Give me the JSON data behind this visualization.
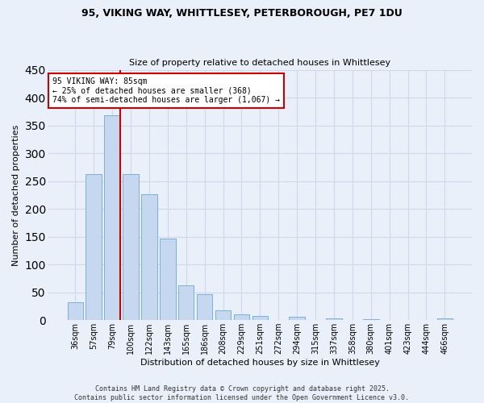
{
  "title_line1": "95, VIKING WAY, WHITTLESEY, PETERBOROUGH, PE7 1DU",
  "title_line2": "Size of property relative to detached houses in Whittlesey",
  "xlabel": "Distribution of detached houses by size in Whittlesey",
  "ylabel": "Number of detached properties",
  "categories": [
    "36sqm",
    "57sqm",
    "79sqm",
    "100sqm",
    "122sqm",
    "143sqm",
    "165sqm",
    "186sqm",
    "208sqm",
    "229sqm",
    "251sqm",
    "272sqm",
    "294sqm",
    "315sqm",
    "337sqm",
    "358sqm",
    "380sqm",
    "401sqm",
    "423sqm",
    "444sqm",
    "466sqm"
  ],
  "values": [
    32,
    263,
    368,
    263,
    226,
    147,
    62,
    46,
    17,
    10,
    8,
    0,
    6,
    0,
    3,
    0,
    2,
    0,
    0,
    0,
    3
  ],
  "bar_color": "#c5d8f0",
  "bar_edge_color": "#7ab0d8",
  "grid_color": "#d0d8e8",
  "bg_color": "#eaf0fa",
  "vline_color": "#cc0000",
  "vline_x_index": 2,
  "annotation_text_line1": "95 VIKING WAY: 85sqm",
  "annotation_text_line2": "← 25% of detached houses are smaller (368)",
  "annotation_text_line3": "74% of semi-detached houses are larger (1,067) →",
  "annotation_box_color": "#ffffff",
  "annotation_box_edge": "#cc0000",
  "footer_line1": "Contains HM Land Registry data © Crown copyright and database right 2025.",
  "footer_line2": "Contains public sector information licensed under the Open Government Licence v3.0.",
  "ylim": [
    0,
    450
  ],
  "yticks": [
    0,
    50,
    100,
    150,
    200,
    250,
    300,
    350,
    400,
    450
  ],
  "title1_fontsize": 9,
  "title2_fontsize": 8,
  "xlabel_fontsize": 8,
  "ylabel_fontsize": 8,
  "xtick_fontsize": 7,
  "ytick_fontsize": 8,
  "annot_fontsize": 7,
  "footer_fontsize": 6
}
